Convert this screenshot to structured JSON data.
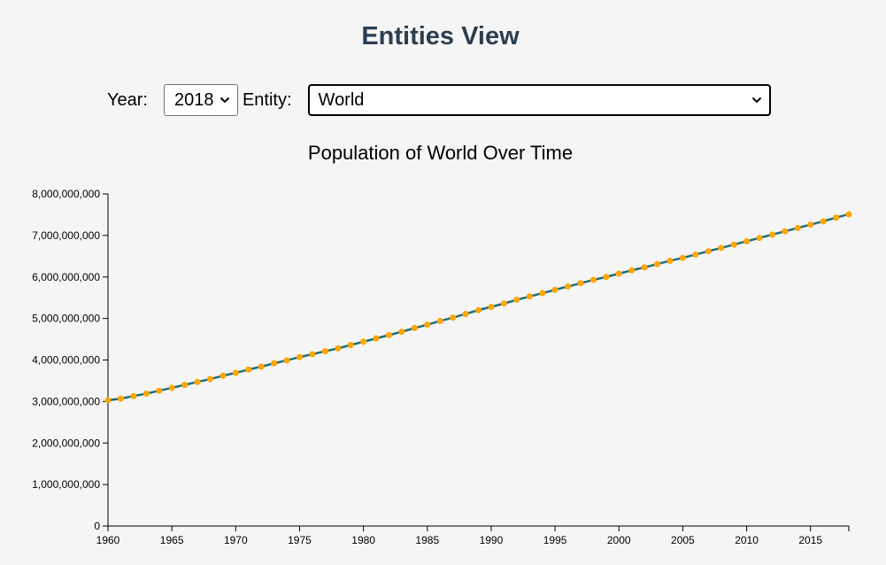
{
  "page": {
    "title": "Entities View"
  },
  "controls": {
    "year_label": "Year:",
    "year_value": "2018",
    "entity_label": "Entity:",
    "entity_value": "World"
  },
  "colors": {
    "title": "#2c3e50",
    "line": "#1f6f78",
    "points": "#ffa500",
    "background": "#f5f5f5"
  },
  "chart_data": {
    "type": "line",
    "title": "Population of World Over Time",
    "xlabel": "",
    "ylabel": "",
    "xlim": [
      1960,
      2018
    ],
    "ylim": [
      0,
      8000000000
    ],
    "x_ticks": [
      1960,
      1965,
      1970,
      1975,
      1980,
      1985,
      1990,
      1995,
      2000,
      2005,
      2010,
      2015
    ],
    "y_ticks": [
      0,
      1000000000,
      2000000000,
      3000000000,
      4000000000,
      5000000000,
      6000000000,
      7000000000,
      8000000000
    ],
    "y_tick_labels": [
      "0",
      "1,000,000,000",
      "2,000,000,000",
      "3,000,000,000",
      "4,000,000,000",
      "5,000,000,000",
      "6,000,000,000",
      "7,000,000,000",
      "8,000,000,000"
    ],
    "grid": false,
    "x": [
      1960,
      1961,
      1962,
      1963,
      1964,
      1965,
      1966,
      1967,
      1968,
      1969,
      1970,
      1971,
      1972,
      1973,
      1974,
      1975,
      1976,
      1977,
      1978,
      1979,
      1980,
      1981,
      1982,
      1983,
      1984,
      1985,
      1986,
      1987,
      1988,
      1989,
      1990,
      1991,
      1992,
      1993,
      1994,
      1995,
      1996,
      1997,
      1998,
      1999,
      2000,
      2001,
      2002,
      2003,
      2004,
      2005,
      2006,
      2007,
      2008,
      2009,
      2010,
      2011,
      2012,
      2013,
      2014,
      2015,
      2016,
      2017,
      2018
    ],
    "values": [
      3030000000,
      3070000000,
      3130000000,
      3190000000,
      3260000000,
      3330000000,
      3400000000,
      3470000000,
      3540000000,
      3620000000,
      3690000000,
      3770000000,
      3840000000,
      3920000000,
      3990000000,
      4070000000,
      4140000000,
      4210000000,
      4280000000,
      4360000000,
      4440000000,
      4520000000,
      4600000000,
      4680000000,
      4770000000,
      4850000000,
      4940000000,
      5020000000,
      5110000000,
      5200000000,
      5280000000,
      5360000000,
      5450000000,
      5530000000,
      5610000000,
      5690000000,
      5770000000,
      5850000000,
      5930000000,
      6000000000,
      6080000000,
      6160000000,
      6230000000,
      6310000000,
      6390000000,
      6460000000,
      6540000000,
      6620000000,
      6700000000,
      6780000000,
      6860000000,
      6940000000,
      7020000000,
      7100000000,
      7180000000,
      7260000000,
      7340000000,
      7430000000,
      7510000000
    ]
  }
}
